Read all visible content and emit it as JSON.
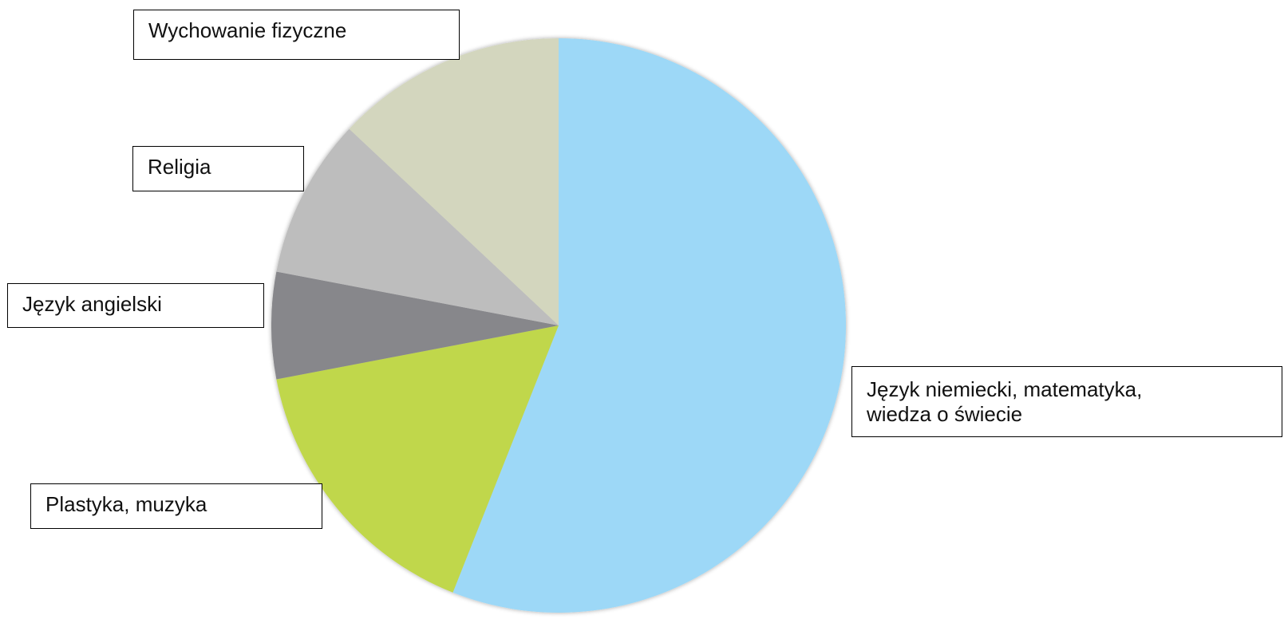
{
  "chart_data": {
    "type": "pie",
    "title": "",
    "start_angle_deg": 0,
    "direction": "clockwise",
    "slices": [
      {
        "label": "Język niemiecki, matematyka,\nwiedza o świecie",
        "value": 56,
        "color": "#9dd8f7"
      },
      {
        "label": "Plastyka, muzyka",
        "value": 16,
        "color": "#c0d74b"
      },
      {
        "label": "Język angielski",
        "value": 6,
        "color": "#87878b"
      },
      {
        "label": "Religia",
        "value": 9,
        "color": "#bdbdbd"
      },
      {
        "label": "Wychowanie fizyczne",
        "value": 13,
        "color": "#d3d6be"
      }
    ]
  }
}
